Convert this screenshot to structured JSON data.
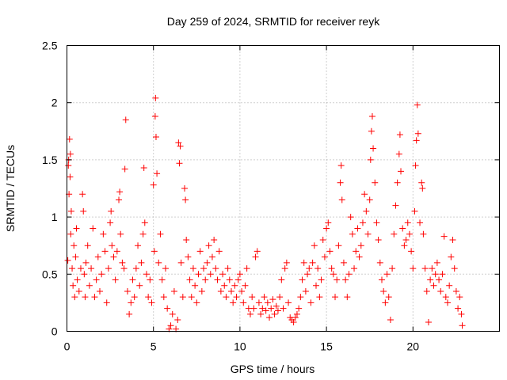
{
  "chart_data": {
    "type": "scatter",
    "title": "Day 259 of 2024, SRMTID for receiver reyk",
    "xlabel": "GPS time / hours",
    "ylabel": "SRMTID / TECUs",
    "xlim": [
      0,
      25
    ],
    "ylim": [
      0,
      2.5
    ],
    "xticks": [
      0,
      5,
      10,
      15,
      20
    ],
    "xtick_labels": [
      "0",
      "5",
      "10",
      "15",
      "20"
    ],
    "yticks": [
      0,
      0.5,
      1,
      1.5,
      2,
      2.5
    ],
    "ytick_labels": [
      "0",
      "0.5",
      "1",
      "1.5",
      "2",
      "2.5"
    ],
    "grid": true,
    "marker": "+",
    "series": [
      {
        "name": "SRMTID",
        "color": "#ff0000",
        "points": [
          [
            0.05,
            0.62
          ],
          [
            0.08,
            1.45
          ],
          [
            0.1,
            1.5
          ],
          [
            0.12,
            1.2
          ],
          [
            0.15,
            1.68
          ],
          [
            0.18,
            1.35
          ],
          [
            0.2,
            1.55
          ],
          [
            0.22,
            0.85
          ],
          [
            0.25,
            1.05
          ],
          [
            0.3,
            0.55
          ],
          [
            0.35,
            0.4
          ],
          [
            0.4,
            0.75
          ],
          [
            0.45,
            0.3
          ],
          [
            0.5,
            0.65
          ],
          [
            0.55,
            0.9
          ],
          [
            0.6,
            0.45
          ],
          [
            0.7,
            0.35
          ],
          [
            0.8,
            0.55
          ],
          [
            0.9,
            1.2
          ],
          [
            0.95,
            1.05
          ],
          [
            1.0,
            0.5
          ],
          [
            1.05,
            0.3
          ],
          [
            1.1,
            0.6
          ],
          [
            1.2,
            0.75
          ],
          [
            1.3,
            0.4
          ],
          [
            1.4,
            0.55
          ],
          [
            1.5,
            0.9
          ],
          [
            1.6,
            0.3
          ],
          [
            1.7,
            0.45
          ],
          [
            1.8,
            0.65
          ],
          [
            1.9,
            0.35
          ],
          [
            2.0,
            0.5
          ],
          [
            2.1,
            0.85
          ],
          [
            2.2,
            0.7
          ],
          [
            2.3,
            0.25
          ],
          [
            2.4,
            0.55
          ],
          [
            2.5,
            0.95
          ],
          [
            2.55,
            1.05
          ],
          [
            2.6,
            0.75
          ],
          [
            2.7,
            0.65
          ],
          [
            2.8,
            0.45
          ],
          [
            2.9,
            0.7
          ],
          [
            3.0,
            1.15
          ],
          [
            3.05,
            1.22
          ],
          [
            3.1,
            0.85
          ],
          [
            3.2,
            0.6
          ],
          [
            3.3,
            0.55
          ],
          [
            3.35,
            1.42
          ],
          [
            3.4,
            1.85
          ],
          [
            3.5,
            0.35
          ],
          [
            3.6,
            0.15
          ],
          [
            3.7,
            0.25
          ],
          [
            3.8,
            0.45
          ],
          [
            3.9,
            0.3
          ],
          [
            4.0,
            0.55
          ],
          [
            4.1,
            0.75
          ],
          [
            4.2,
            0.4
          ],
          [
            4.3,
            0.6
          ],
          [
            4.4,
            0.85
          ],
          [
            4.45,
            1.43
          ],
          [
            4.5,
            0.95
          ],
          [
            4.6,
            0.5
          ],
          [
            4.7,
            0.3
          ],
          [
            4.8,
            0.45
          ],
          [
            4.9,
            0.25
          ],
          [
            5.0,
            1.28
          ],
          [
            5.05,
            0.7
          ],
          [
            5.1,
            1.88
          ],
          [
            5.12,
            2.04
          ],
          [
            5.15,
            1.7
          ],
          [
            5.2,
            1.38
          ],
          [
            5.3,
            0.6
          ],
          [
            5.4,
            0.85
          ],
          [
            5.5,
            0.45
          ],
          [
            5.6,
            0.3
          ],
          [
            5.7,
            0.55
          ],
          [
            5.8,
            0.2
          ],
          [
            5.9,
            0.02
          ],
          [
            6.0,
            0.05
          ],
          [
            6.1,
            0.15
          ],
          [
            6.2,
            0.35
          ],
          [
            6.3,
            0.02
          ],
          [
            6.4,
            0.1
          ],
          [
            6.45,
            1.65
          ],
          [
            6.5,
            1.47
          ],
          [
            6.55,
            1.62
          ],
          [
            6.6,
            0.6
          ],
          [
            6.7,
            0.3
          ],
          [
            6.8,
            1.25
          ],
          [
            6.85,
            1.15
          ],
          [
            6.9,
            0.8
          ],
          [
            7.0,
            0.65
          ],
          [
            7.1,
            0.45
          ],
          [
            7.2,
            0.3
          ],
          [
            7.3,
            0.55
          ],
          [
            7.4,
            0.4
          ],
          [
            7.5,
            0.25
          ],
          [
            7.6,
            0.5
          ],
          [
            7.7,
            0.7
          ],
          [
            7.8,
            0.35
          ],
          [
            7.9,
            0.55
          ],
          [
            8.0,
            0.45
          ],
          [
            8.1,
            0.6
          ],
          [
            8.2,
            0.75
          ],
          [
            8.3,
            0.5
          ],
          [
            8.4,
            0.65
          ],
          [
            8.5,
            0.8
          ],
          [
            8.6,
            0.55
          ],
          [
            8.7,
            0.45
          ],
          [
            8.8,
            0.7
          ],
          [
            8.9,
            0.35
          ],
          [
            9.0,
            0.5
          ],
          [
            9.1,
            0.4
          ],
          [
            9.2,
            0.3
          ],
          [
            9.3,
            0.55
          ],
          [
            9.4,
            0.45
          ],
          [
            9.5,
            0.35
          ],
          [
            9.6,
            0.25
          ],
          [
            9.7,
            0.4
          ],
          [
            9.8,
            0.3
          ],
          [
            9.9,
            0.45
          ],
          [
            10.0,
            0.5
          ],
          [
            10.1,
            0.35
          ],
          [
            10.2,
            0.25
          ],
          [
            10.3,
            0.4
          ],
          [
            10.4,
            0.55
          ],
          [
            10.5,
            0.2
          ],
          [
            10.6,
            0.15
          ],
          [
            10.7,
            0.3
          ],
          [
            10.8,
            0.2
          ],
          [
            10.9,
            0.65
          ],
          [
            11.0,
            0.7
          ],
          [
            11.1,
            0.25
          ],
          [
            11.2,
            0.15
          ],
          [
            11.3,
            0.2
          ],
          [
            11.4,
            0.3
          ],
          [
            11.5,
            0.18
          ],
          [
            11.6,
            0.25
          ],
          [
            11.7,
            0.12
          ],
          [
            11.8,
            0.2
          ],
          [
            11.9,
            0.28
          ],
          [
            12.0,
            0.15
          ],
          [
            12.1,
            0.22
          ],
          [
            12.2,
            0.18
          ],
          [
            12.3,
            0.3
          ],
          [
            12.4,
            0.45
          ],
          [
            12.5,
            0.2
          ],
          [
            12.6,
            0.55
          ],
          [
            12.7,
            0.6
          ],
          [
            12.8,
            0.25
          ],
          [
            12.9,
            0.12
          ],
          [
            13.0,
            0.1
          ],
          [
            13.1,
            0.08
          ],
          [
            13.2,
            0.12
          ],
          [
            13.3,
            0.15
          ],
          [
            13.4,
            0.2
          ],
          [
            13.5,
            0.3
          ],
          [
            13.6,
            0.45
          ],
          [
            13.7,
            0.6
          ],
          [
            13.8,
            0.35
          ],
          [
            13.9,
            0.5
          ],
          [
            14.0,
            0.55
          ],
          [
            14.1,
            0.25
          ],
          [
            14.2,
            0.6
          ],
          [
            14.3,
            0.75
          ],
          [
            14.4,
            0.4
          ],
          [
            14.5,
            0.55
          ],
          [
            14.6,
            0.3
          ],
          [
            14.7,
            0.45
          ],
          [
            14.8,
            0.8
          ],
          [
            14.9,
            0.65
          ],
          [
            15.0,
            0.9
          ],
          [
            15.1,
            0.95
          ],
          [
            15.2,
            0.7
          ],
          [
            15.3,
            0.55
          ],
          [
            15.4,
            0.5
          ],
          [
            15.5,
            0.3
          ],
          [
            15.6,
            0.45
          ],
          [
            15.7,
            0.75
          ],
          [
            15.8,
            1.3
          ],
          [
            15.85,
            1.45
          ],
          [
            15.9,
            1.15
          ],
          [
            16.0,
            0.6
          ],
          [
            16.1,
            0.45
          ],
          [
            16.2,
            0.3
          ],
          [
            16.3,
            0.5
          ],
          [
            16.4,
            1.0
          ],
          [
            16.5,
            0.85
          ],
          [
            16.6,
            0.55
          ],
          [
            16.7,
            0.7
          ],
          [
            16.8,
            0.9
          ],
          [
            16.9,
            0.65
          ],
          [
            17.0,
            0.75
          ],
          [
            17.1,
            0.95
          ],
          [
            17.2,
            1.2
          ],
          [
            17.3,
            1.05
          ],
          [
            17.4,
            0.85
          ],
          [
            17.5,
            1.15
          ],
          [
            17.55,
            1.5
          ],
          [
            17.6,
            1.75
          ],
          [
            17.65,
            1.88
          ],
          [
            17.7,
            1.6
          ],
          [
            17.8,
            1.3
          ],
          [
            17.9,
            0.95
          ],
          [
            18.0,
            0.8
          ],
          [
            18.1,
            0.6
          ],
          [
            18.2,
            0.45
          ],
          [
            18.3,
            0.35
          ],
          [
            18.4,
            0.25
          ],
          [
            18.5,
            0.5
          ],
          [
            18.6,
            0.3
          ],
          [
            18.7,
            0.1
          ],
          [
            18.8,
            0.55
          ],
          [
            18.9,
            0.85
          ],
          [
            19.0,
            1.1
          ],
          [
            19.1,
            1.3
          ],
          [
            19.2,
            1.55
          ],
          [
            19.25,
            1.72
          ],
          [
            19.3,
            1.4
          ],
          [
            19.4,
            0.9
          ],
          [
            19.5,
            0.75
          ],
          [
            19.6,
            0.8
          ],
          [
            19.7,
            0.95
          ],
          [
            19.8,
            0.85
          ],
          [
            19.9,
            0.7
          ],
          [
            20.0,
            0.55
          ],
          [
            20.1,
            1.05
          ],
          [
            20.15,
            1.45
          ],
          [
            20.2,
            1.67
          ],
          [
            20.25,
            1.98
          ],
          [
            20.3,
            1.73
          ],
          [
            20.4,
            0.95
          ],
          [
            20.5,
            1.3
          ],
          [
            20.55,
            1.25
          ],
          [
            20.6,
            0.85
          ],
          [
            20.7,
            0.55
          ],
          [
            20.8,
            0.35
          ],
          [
            20.9,
            0.08
          ],
          [
            21.0,
            0.45
          ],
          [
            21.1,
            0.55
          ],
          [
            21.2,
            0.4
          ],
          [
            21.3,
            0.5
          ],
          [
            21.4,
            0.6
          ],
          [
            21.5,
            0.45
          ],
          [
            21.6,
            0.35
          ],
          [
            21.7,
            0.5
          ],
          [
            21.8,
            0.83
          ],
          [
            21.9,
            0.3
          ],
          [
            22.0,
            0.25
          ],
          [
            22.1,
            0.4
          ],
          [
            22.2,
            0.65
          ],
          [
            22.3,
            0.8
          ],
          [
            22.4,
            0.55
          ],
          [
            22.5,
            0.35
          ],
          [
            22.6,
            0.2
          ],
          [
            22.7,
            0.3
          ],
          [
            22.8,
            0.15
          ],
          [
            22.85,
            0.05
          ]
        ]
      }
    ]
  }
}
